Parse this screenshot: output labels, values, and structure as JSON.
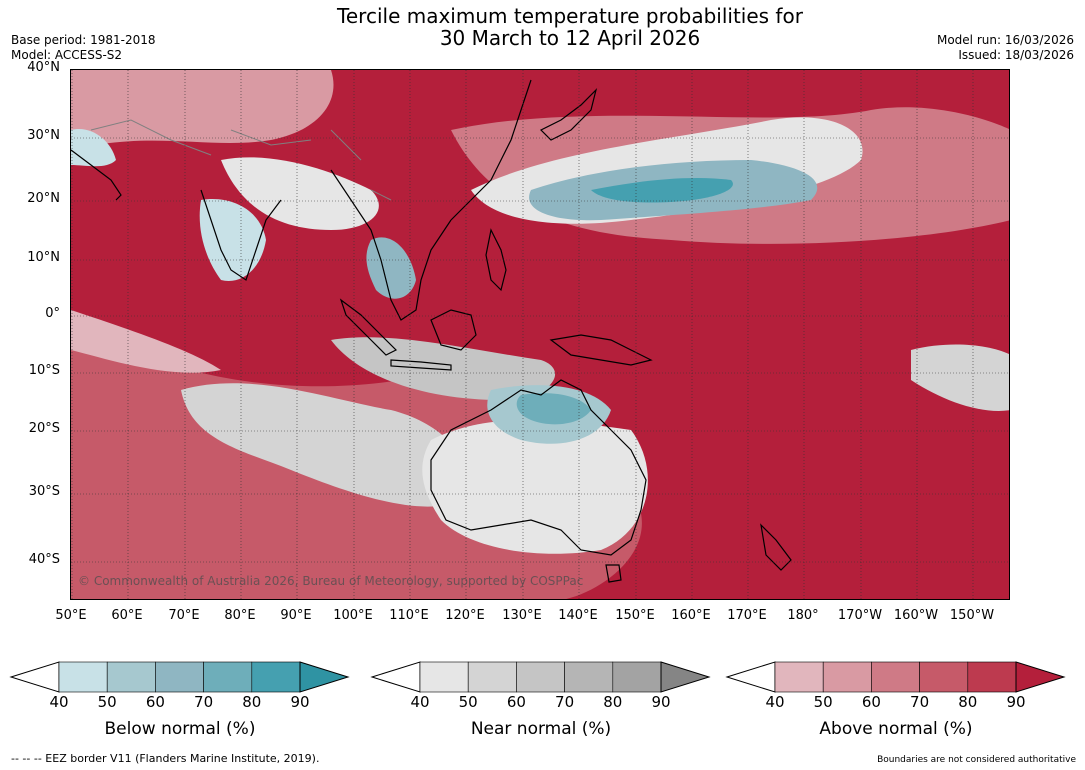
{
  "title": {
    "line1": "Tercile maximum temperature probabilities for",
    "line2": "30 March to 12 April 2026"
  },
  "meta_left": {
    "base_period": "Base period: 1981-2018",
    "model": "Model: ACCESS-S2"
  },
  "meta_right": {
    "model_run": "Model run: 16/03/2026",
    "issued": "Issued: 18/03/2026"
  },
  "map": {
    "lat_labels": [
      "40°N",
      "30°N",
      "20°N",
      "10°N",
      "0°",
      "10°S",
      "20°S",
      "30°S",
      "40°S"
    ],
    "lon_labels": [
      "50°E",
      "60°E",
      "70°E",
      "80°E",
      "90°E",
      "100°E",
      "110°E",
      "120°E",
      "130°E",
      "140°E",
      "150°E",
      "160°E",
      "170°E",
      "180°",
      "170°W",
      "160°W",
      "150°W"
    ],
    "copyright": "© Commonwealth of Australia 2026, Bureau of Meteorology, supported by COSPPac",
    "dominant_category": "above-normal",
    "base_color": "#b41f3b"
  },
  "colorbars": [
    {
      "label": "Below normal (%)",
      "ticks": [
        "40",
        "50",
        "60",
        "70",
        "80",
        "90"
      ],
      "colors": [
        "#ffffff",
        "#c8e1e7",
        "#a6c8cf",
        "#8fb6c2",
        "#6eaeba",
        "#45a0b0",
        "#2f93a3"
      ]
    },
    {
      "label": "Near normal (%)",
      "ticks": [
        "40",
        "50",
        "60",
        "70",
        "80",
        "90"
      ],
      "colors": [
        "#ffffff",
        "#e6e6e6",
        "#d4d4d4",
        "#c5c5c5",
        "#b5b5b5",
        "#a3a3a3",
        "#858585"
      ]
    },
    {
      "label": "Above normal (%)",
      "ticks": [
        "40",
        "50",
        "60",
        "70",
        "80",
        "90"
      ],
      "colors": [
        "#ffffff",
        "#e1b6bd",
        "#d99aa3",
        "#cf7a86",
        "#c65a69",
        "#bd3a4f",
        "#b41f3b"
      ]
    }
  ],
  "footer": {
    "eez": "--  --  -- EEZ border V11 (Flanders Marine Institute, 2019).",
    "boundaries": "Boundaries are not considered authoritative"
  }
}
